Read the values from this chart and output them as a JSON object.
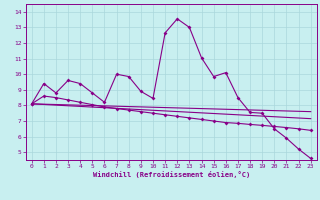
{
  "xlabel": "Windchill (Refroidissement éolien,°C)",
  "xlim": [
    -0.5,
    23.5
  ],
  "ylim": [
    4.5,
    14.5
  ],
  "xticks": [
    0,
    1,
    2,
    3,
    4,
    5,
    6,
    7,
    8,
    9,
    10,
    11,
    12,
    13,
    14,
    15,
    16,
    17,
    18,
    19,
    20,
    21,
    22,
    23
  ],
  "yticks": [
    5,
    6,
    7,
    8,
    9,
    10,
    11,
    12,
    13,
    14
  ],
  "bg_color": "#c8eff0",
  "grid_color": "#aad8dc",
  "line_color": "#880088",
  "curve1_x": [
    0,
    1,
    2,
    3,
    4,
    5,
    6,
    7,
    8,
    9,
    10,
    11,
    12,
    13,
    14,
    15,
    16,
    17,
    18,
    19,
    20,
    21,
    22,
    23
  ],
  "curve1_y": [
    8.1,
    9.4,
    8.8,
    9.6,
    9.4,
    8.8,
    8.2,
    10.0,
    9.85,
    8.9,
    8.45,
    12.65,
    13.55,
    13.0,
    11.05,
    9.85,
    10.1,
    8.5,
    7.55,
    7.5,
    6.5,
    5.9,
    5.2,
    4.6
  ],
  "curve2_x": [
    0,
    1,
    2,
    3,
    4,
    5,
    6,
    7,
    8,
    9,
    10,
    11,
    12,
    13,
    14,
    15,
    16,
    17,
    18,
    19,
    20,
    21,
    22,
    23
  ],
  "curve2_y": [
    8.1,
    8.6,
    8.5,
    8.35,
    8.2,
    8.05,
    7.9,
    7.8,
    7.7,
    7.6,
    7.5,
    7.4,
    7.3,
    7.2,
    7.1,
    7.0,
    6.9,
    6.85,
    6.78,
    6.72,
    6.65,
    6.58,
    6.5,
    6.4
  ],
  "curve3_x": [
    0,
    23
  ],
  "curve3_y": [
    8.1,
    7.6
  ],
  "curve4_x": [
    0,
    23
  ],
  "curve4_y": [
    8.1,
    7.15
  ]
}
